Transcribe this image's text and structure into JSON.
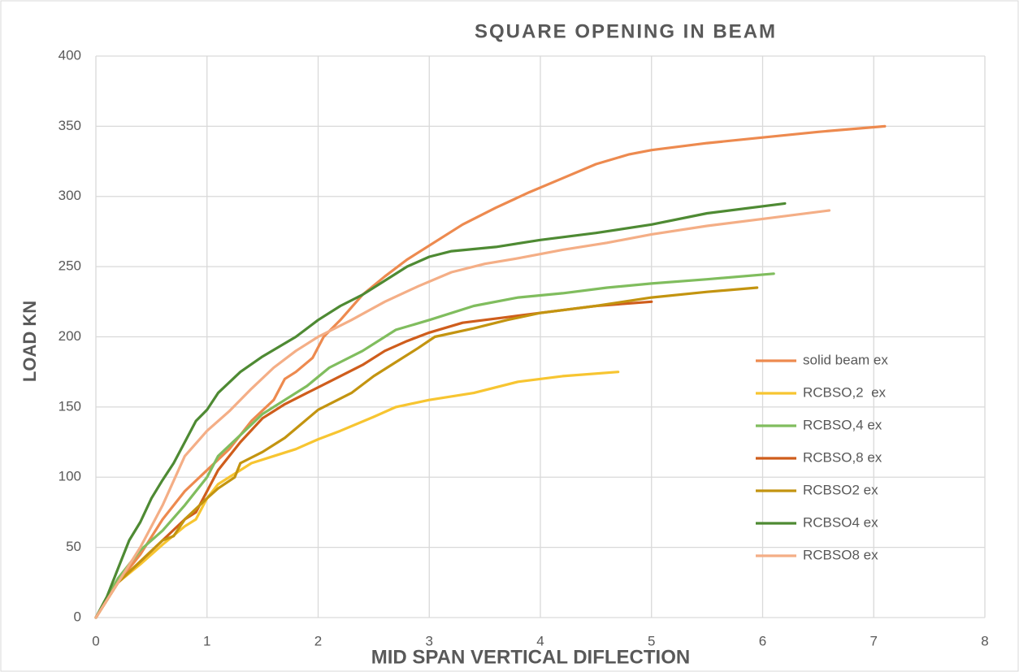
{
  "chart_data": {
    "type": "line",
    "title": "SQUARE OPENING IN BEAM",
    "x_label": "MID SPAN VERTICAL DIFLECTION",
    "y_label": "LOAD KN",
    "xlim": [
      0,
      8
    ],
    "xticks": [
      0,
      1,
      2,
      3,
      4,
      5,
      6,
      7,
      8
    ],
    "ylim": [
      0,
      400
    ],
    "yticks": [
      0,
      50,
      100,
      150,
      200,
      250,
      300,
      350,
      400
    ],
    "grid": true,
    "legend": "right",
    "series": [
      {
        "name": "solid beam ex",
        "color": "#ed8a4f",
        "x": [
          0,
          0.2,
          0.4,
          0.6,
          0.8,
          1.0,
          1.2,
          1.4,
          1.6,
          1.7,
          1.8,
          1.95,
          2.05,
          2.2,
          2.4,
          2.6,
          2.8,
          3.0,
          3.3,
          3.6,
          3.9,
          4.2,
          4.5,
          4.8,
          5.0,
          5.5,
          6.0,
          6.5,
          7.1
        ],
        "values": [
          0,
          25,
          45,
          70,
          90,
          105,
          120,
          140,
          155,
          170,
          175,
          185,
          200,
          212,
          230,
          243,
          255,
          265,
          280,
          292,
          303,
          313,
          323,
          330,
          333,
          338,
          342,
          346,
          350
        ]
      },
      {
        "name": "RCBSO,2  ex",
        "color": "#f7c531",
        "x": [
          0,
          0.2,
          0.4,
          0.6,
          0.8,
          0.9,
          1.0,
          1.1,
          1.3,
          1.4,
          1.6,
          1.8,
          2.0,
          2.2,
          2.5,
          2.7,
          3.0,
          3.4,
          3.8,
          4.2,
          4.7
        ],
        "values": [
          0,
          25,
          38,
          52,
          65,
          70,
          85,
          95,
          105,
          110,
          115,
          120,
          127,
          133,
          143,
          150,
          155,
          160,
          168,
          172,
          175
        ]
      },
      {
        "name": "RCBSO,4 ex",
        "color": "#80bd5e",
        "x": [
          0,
          0.2,
          0.4,
          0.6,
          0.8,
          1.0,
          1.1,
          1.3,
          1.5,
          1.7,
          1.9,
          2.1,
          2.4,
          2.7,
          3.0,
          3.4,
          3.8,
          4.2,
          4.6,
          5.0,
          5.5,
          6.1
        ],
        "values": [
          0,
          28,
          48,
          62,
          80,
          100,
          115,
          130,
          145,
          155,
          165,
          178,
          190,
          205,
          212,
          222,
          228,
          231,
          235,
          238,
          241,
          245
        ]
      },
      {
        "name": "RCBSO,8 ex",
        "color": "#cf5d1c",
        "x": [
          0,
          0.2,
          0.4,
          0.6,
          0.8,
          0.9,
          1.0,
          1.1,
          1.3,
          1.5,
          1.7,
          1.9,
          2.1,
          2.4,
          2.6,
          2.8,
          3.0,
          3.3,
          3.7,
          4.0,
          4.5,
          5.0
        ],
        "values": [
          0,
          25,
          40,
          55,
          70,
          75,
          90,
          105,
          125,
          142,
          152,
          160,
          168,
          180,
          190,
          197,
          203,
          210,
          214,
          217,
          222,
          225
        ]
      },
      {
        "name": "RCBSO2 ex",
        "color": "#c39410",
        "x": [
          0,
          0.2,
          0.4,
          0.6,
          0.7,
          0.8,
          1.0,
          1.1,
          1.25,
          1.3,
          1.5,
          1.7,
          1.85,
          2.0,
          2.3,
          2.5,
          2.7,
          2.9,
          3.05,
          3.4,
          3.7,
          4.0,
          4.5,
          5.0,
          5.5,
          5.95
        ],
        "values": [
          0,
          25,
          40,
          55,
          58,
          70,
          85,
          92,
          100,
          110,
          118,
          128,
          138,
          148,
          160,
          172,
          182,
          192,
          200,
          206,
          212,
          217,
          222,
          228,
          232,
          235
        ]
      },
      {
        "name": "RCBSO4 ex",
        "color": "#4e8a33",
        "x": [
          0,
          0.1,
          0.2,
          0.3,
          0.4,
          0.5,
          0.6,
          0.7,
          0.8,
          0.9,
          1.0,
          1.1,
          1.3,
          1.5,
          1.8,
          2.0,
          2.2,
          2.4,
          2.6,
          2.8,
          3.0,
          3.2,
          3.6,
          4.0,
          4.5,
          5.0,
          5.5,
          6.2
        ],
        "values": [
          0,
          15,
          35,
          55,
          68,
          85,
          98,
          110,
          125,
          140,
          148,
          160,
          175,
          186,
          200,
          212,
          222,
          230,
          240,
          250,
          257,
          261,
          264,
          269,
          274,
          280,
          288,
          295
        ]
      },
      {
        "name": "RCBSO8 ex",
        "color": "#f4ae86",
        "x": [
          0,
          0.2,
          0.4,
          0.6,
          0.8,
          1.0,
          1.2,
          1.4,
          1.6,
          1.8,
          2.0,
          2.3,
          2.6,
          2.9,
          3.2,
          3.5,
          3.8,
          4.2,
          4.6,
          5.0,
          5.5,
          6.0,
          6.6
        ],
        "values": [
          0,
          25,
          50,
          80,
          115,
          133,
          147,
          163,
          178,
          190,
          200,
          212,
          225,
          236,
          246,
          252,
          256,
          262,
          267,
          273,
          279,
          284,
          290
        ]
      }
    ]
  }
}
